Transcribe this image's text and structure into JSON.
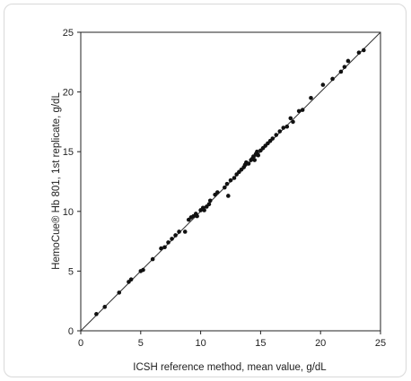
{
  "chart_data": {
    "type": "scatter",
    "title": "",
    "xlabel": "ICSH reference method, mean value,  g/dL",
    "ylabel": "HemoCue® Hb 801, 1st replicate, g/dL",
    "xlim": [
      0,
      25
    ],
    "ylim": [
      0,
      25
    ],
    "xticks": [
      "0",
      "5",
      "10",
      "15",
      "20",
      "25"
    ],
    "yticks": [
      "0",
      "5",
      "10",
      "15",
      "20",
      "25"
    ],
    "grid": false,
    "legend": "none",
    "identity_line": true,
    "colors": {
      "points": "#111111",
      "line": "#333333",
      "frame": "#222222"
    },
    "series": [
      {
        "points": [
          [
            1.3,
            1.4
          ],
          [
            2.0,
            2.0
          ],
          [
            3.2,
            3.2
          ],
          [
            4.0,
            4.1
          ],
          [
            4.2,
            4.3
          ],
          [
            5.0,
            5.0
          ],
          [
            5.2,
            5.1
          ],
          [
            6.0,
            6.0
          ],
          [
            6.7,
            6.9
          ],
          [
            7.0,
            7.0
          ],
          [
            7.3,
            7.4
          ],
          [
            7.6,
            7.7
          ],
          [
            7.9,
            8.0
          ],
          [
            8.2,
            8.3
          ],
          [
            8.7,
            8.3
          ],
          [
            9.0,
            9.3
          ],
          [
            9.2,
            9.5
          ],
          [
            9.4,
            9.6
          ],
          [
            9.6,
            9.8
          ],
          [
            9.7,
            9.6
          ],
          [
            10.0,
            10.1
          ],
          [
            10.2,
            10.3
          ],
          [
            10.3,
            10.1
          ],
          [
            10.5,
            10.4
          ],
          [
            10.7,
            10.6
          ],
          [
            10.8,
            10.9
          ],
          [
            11.2,
            11.4
          ],
          [
            11.4,
            11.6
          ],
          [
            12.0,
            12.0
          ],
          [
            12.2,
            12.3
          ],
          [
            12.3,
            11.3
          ],
          [
            12.5,
            12.6
          ],
          [
            12.8,
            12.8
          ],
          [
            13.0,
            13.1
          ],
          [
            13.2,
            13.3
          ],
          [
            13.4,
            13.5
          ],
          [
            13.6,
            13.7
          ],
          [
            13.7,
            13.9
          ],
          [
            13.8,
            14.1
          ],
          [
            14.0,
            14.0
          ],
          [
            14.2,
            14.3
          ],
          [
            14.3,
            14.4
          ],
          [
            14.4,
            14.6
          ],
          [
            14.5,
            14.3
          ],
          [
            14.6,
            14.8
          ],
          [
            14.7,
            15.0
          ],
          [
            14.8,
            14.7
          ],
          [
            15.0,
            15.1
          ],
          [
            15.2,
            15.3
          ],
          [
            15.4,
            15.5
          ],
          [
            15.6,
            15.7
          ],
          [
            15.8,
            15.9
          ],
          [
            16.0,
            16.1
          ],
          [
            16.3,
            16.4
          ],
          [
            16.6,
            16.7
          ],
          [
            16.9,
            17.0
          ],
          [
            17.2,
            17.1
          ],
          [
            17.5,
            17.8
          ],
          [
            17.7,
            17.5
          ],
          [
            18.2,
            18.4
          ],
          [
            18.5,
            18.5
          ],
          [
            19.2,
            19.5
          ],
          [
            20.2,
            20.6
          ],
          [
            21.0,
            21.1
          ],
          [
            21.7,
            21.7
          ],
          [
            22.0,
            22.1
          ],
          [
            22.3,
            22.6
          ],
          [
            23.2,
            23.3
          ],
          [
            23.6,
            23.5
          ]
        ]
      }
    ]
  }
}
